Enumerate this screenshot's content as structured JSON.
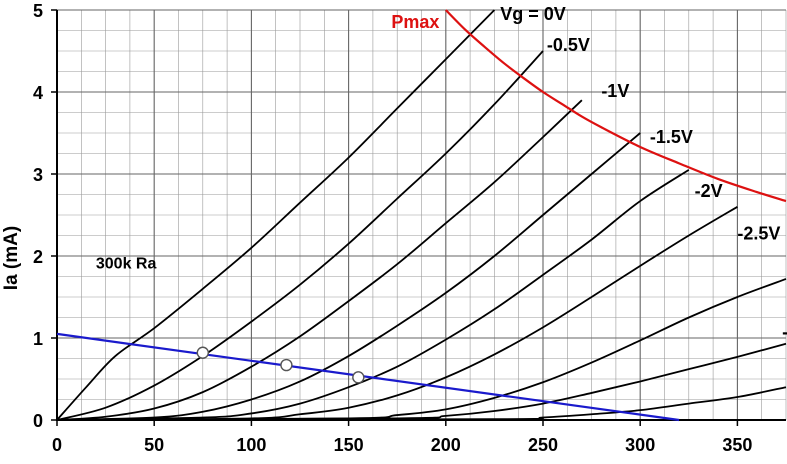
{
  "chart_data": {
    "type": "line",
    "title": "",
    "xlabel": "",
    "ylabel": "Ia (mA)",
    "xlim": [
      0,
      375
    ],
    "ylim": [
      0,
      5
    ],
    "x_ticks": [
      0,
      50,
      100,
      150,
      200,
      250,
      300,
      350
    ],
    "y_ticks": [
      0,
      1,
      2,
      3,
      4,
      5
    ],
    "x_minor_step": 12.5,
    "y_minor_step": 0.25,
    "grid": true,
    "legend": "none",
    "colors": {
      "curves": "#000000",
      "pmax": "#dd1111",
      "load_line": "#1a1acc",
      "grid": "#999999"
    },
    "series": [
      {
        "name": "Vg = 0V",
        "x": [
          0,
          15,
          30,
          50,
          75,
          100,
          125,
          150,
          175,
          200,
          225
        ],
        "y": [
          0,
          0.4,
          0.78,
          1.12,
          1.6,
          2.1,
          2.65,
          3.2,
          3.8,
          4.4,
          5.0
        ]
      },
      {
        "name": "-0.5V",
        "x": [
          0,
          25,
          50,
          75,
          100,
          125,
          150,
          175,
          200,
          225,
          250
        ],
        "y": [
          0,
          0.15,
          0.42,
          0.78,
          1.2,
          1.65,
          2.15,
          2.7,
          3.25,
          3.85,
          4.5
        ]
      },
      {
        "name": "-1V",
        "x": [
          0,
          25,
          50,
          75,
          100,
          125,
          150,
          175,
          200,
          225,
          250,
          270
        ],
        "y": [
          0,
          0.04,
          0.14,
          0.34,
          0.65,
          1.02,
          1.45,
          1.9,
          2.4,
          2.9,
          3.45,
          3.9
        ]
      },
      {
        "name": "-1.5V",
        "x": [
          0,
          50,
          75,
          100,
          125,
          150,
          175,
          200,
          225,
          250,
          275,
          300
        ],
        "y": [
          0,
          0.03,
          0.1,
          0.25,
          0.47,
          0.78,
          1.15,
          1.55,
          2.0,
          2.5,
          3.0,
          3.5
        ]
      },
      {
        "name": "-2V",
        "x": [
          0,
          75,
          100,
          125,
          150,
          175,
          200,
          225,
          250,
          275,
          300,
          325
        ],
        "y": [
          0,
          0.03,
          0.08,
          0.2,
          0.4,
          0.65,
          0.98,
          1.35,
          1.77,
          2.2,
          2.67,
          3.05
        ]
      },
      {
        "name": "-2.5V",
        "x": [
          0,
          100,
          125,
          150,
          175,
          200,
          225,
          250,
          275,
          300,
          325,
          350
        ],
        "y": [
          0,
          0.02,
          0.07,
          0.15,
          0.3,
          0.52,
          0.8,
          1.13,
          1.5,
          1.88,
          2.25,
          2.6
        ]
      },
      {
        "name": "-",
        "x": [
          0,
          150,
          175,
          200,
          225,
          250,
          275,
          300,
          325,
          350,
          375
        ],
        "y": [
          0,
          0.02,
          0.06,
          0.13,
          0.27,
          0.46,
          0.7,
          0.97,
          1.25,
          1.5,
          1.72
        ]
      },
      {
        "name": "",
        "x": [
          0,
          175,
          200,
          225,
          250,
          275,
          300,
          325,
          350,
          375
        ],
        "y": [
          0,
          0.02,
          0.05,
          0.11,
          0.2,
          0.33,
          0.47,
          0.62,
          0.77,
          0.93
        ]
      },
      {
        "name": "",
        "x": [
          0,
          225,
          250,
          275,
          300,
          325,
          350,
          375
        ],
        "y": [
          0,
          0.01,
          0.03,
          0.07,
          0.12,
          0.2,
          0.28,
          0.4
        ]
      },
      {
        "name": "Pmax",
        "x": [
          200,
          210,
          220,
          230,
          240,
          250,
          260,
          270,
          280,
          300,
          320,
          340,
          360,
          375
        ],
        "y": [
          5.0,
          4.76,
          4.55,
          4.35,
          4.17,
          4.0,
          3.85,
          3.7,
          3.57,
          3.33,
          3.13,
          2.94,
          2.78,
          2.67
        ]
      },
      {
        "name": "300k Ra",
        "x": [
          0,
          320
        ],
        "y": [
          1.05,
          0.0
        ]
      }
    ],
    "points": [
      {
        "x": 75,
        "y": 0.82
      },
      {
        "x": 118,
        "y": 0.67
      },
      {
        "x": 155,
        "y": 0.52
      }
    ],
    "curve_labels": [
      {
        "text": "Vg = 0V",
        "x": 228,
        "y": 4.88
      },
      {
        "text": "-0.5V",
        "x": 252,
        "y": 4.5
      },
      {
        "text": "-1V",
        "x": 280,
        "y": 3.94
      },
      {
        "text": "-1.5V",
        "x": 305,
        "y": 3.38
      },
      {
        "text": "-2V",
        "x": 328,
        "y": 2.72
      },
      {
        "text": "-2.5V",
        "x": 350,
        "y": 2.2
      },
      {
        "text": "-",
        "x": 373,
        "y": 1.0
      }
    ],
    "annotations": [
      {
        "text": "300k Ra",
        "x": 20,
        "y": 1.85,
        "color": "#000000"
      },
      {
        "text": "Pmax",
        "x": 172,
        "y": 4.78,
        "color": "#dd1111"
      }
    ]
  }
}
